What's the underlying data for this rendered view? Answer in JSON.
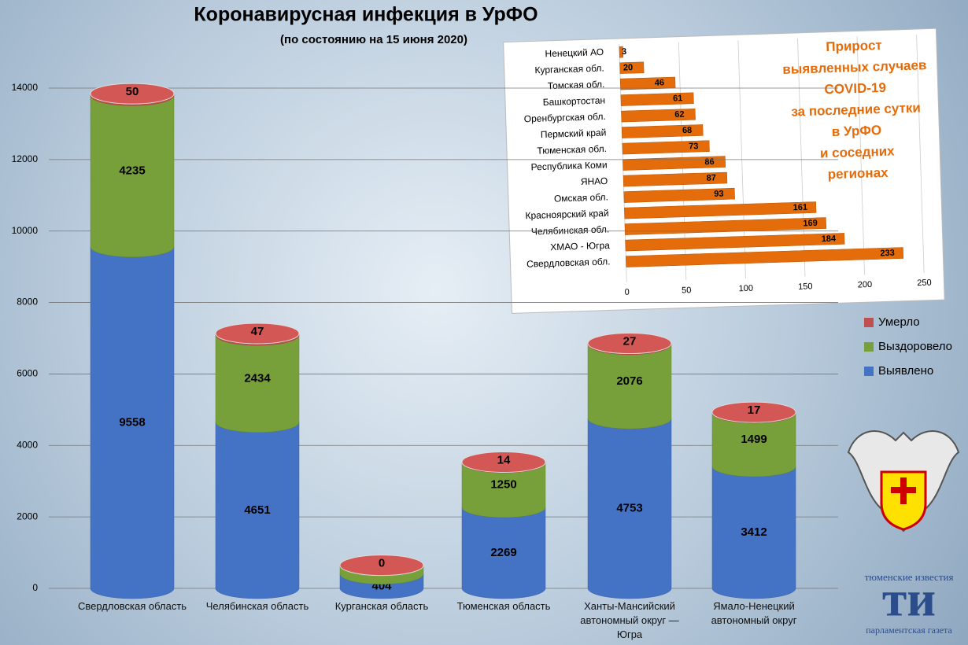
{
  "chart_data": [
    {
      "type": "bar",
      "stacked": true,
      "title": "Коронавирусная инфекция в УрФО",
      "subtitle": "(по состоянию на 15 июня 2020)",
      "categories": [
        "Свердловская область",
        "Челябинская область",
        "Курганская область",
        "Тюменская область",
        "Ханты-Мансийский автономный округ — Югра",
        "Ямало-Ненецкий автономный округ"
      ],
      "series": [
        {
          "name": "Выявлено",
          "color": "#4472c4",
          "values": [
            9558,
            4651,
            404,
            2269,
            4753,
            3412
          ]
        },
        {
          "name": "Выздоровело",
          "color": "#77a03a",
          "values": [
            4235,
            2434,
            242,
            1250,
            2076,
            1499
          ]
        },
        {
          "name": "Умерло",
          "color": "#c0504d",
          "values": [
            50,
            47,
            0,
            14,
            27,
            17
          ]
        }
      ],
      "ylim": [
        0,
        14000
      ],
      "yticks": [
        0,
        2000,
        4000,
        6000,
        8000,
        10000,
        12000,
        14000
      ],
      "grid": true,
      "legend": "right"
    },
    {
      "type": "hbar",
      "title": [
        "Прирост",
        "выявленных случаев",
        "COVID-19",
        "за последние сутки",
        "в УрФО",
        "и соседних",
        "регионах"
      ],
      "categories": [
        "Ненецкий АО",
        "Курганская обл.",
        "Томская обл.",
        "Башкортостан",
        "Оренбургская обл.",
        "Пермский край",
        "Тюменская обл.",
        "Республика Коми",
        "ЯНАО",
        "Омская обл.",
        "Красноярский край",
        "Челябинская обл.",
        "ХМАО - Югра",
        "Свердловская обл."
      ],
      "values": [
        3,
        20,
        46,
        61,
        62,
        68,
        73,
        86,
        87,
        93,
        161,
        169,
        184,
        233
      ],
      "color": "#e46c0a",
      "xlim": [
        0,
        250
      ],
      "xticks": [
        0,
        50,
        100,
        150,
        200,
        250
      ],
      "grid": true
    }
  ],
  "logos": {
    "paper_top": "тюменские известия",
    "paper_mark": "ти",
    "paper_bottom": "парламентская газета"
  }
}
